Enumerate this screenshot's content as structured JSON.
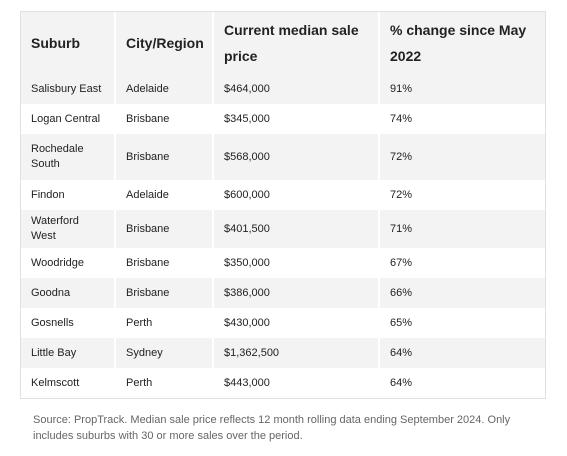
{
  "table": {
    "headers": [
      "Suburb",
      "City/Region",
      "Current median sale price",
      "% change since May 2022"
    ],
    "rows": [
      [
        "Salisbury East",
        "Adelaide",
        "$464,000",
        "91%"
      ],
      [
        "Logan Central",
        "Brisbane",
        "$345,000",
        "74%"
      ],
      [
        "Rochedale South",
        "Brisbane",
        "$568,000",
        "72%"
      ],
      [
        "Findon",
        "Adelaide",
        "$600,000",
        "72%"
      ],
      [
        "Waterford West",
        "Brisbane",
        "$401,500",
        "71%"
      ],
      [
        "Woodridge",
        "Brisbane",
        "$350,000",
        "67%"
      ],
      [
        "Goodna",
        "Brisbane",
        "$386,000",
        "66%"
      ],
      [
        "Gosnells",
        "Perth",
        "$430,000",
        "65%"
      ],
      [
        "Little Bay",
        "Sydney",
        "$1,362,500",
        "64%"
      ],
      [
        "Kelmscott",
        "Perth",
        "$443,000",
        "64%"
      ]
    ]
  },
  "source_note": "Source: PropTrack. Median sale price reflects 12 month rolling data ending September 2024. Only includes suburbs with 30 or more sales over the period."
}
